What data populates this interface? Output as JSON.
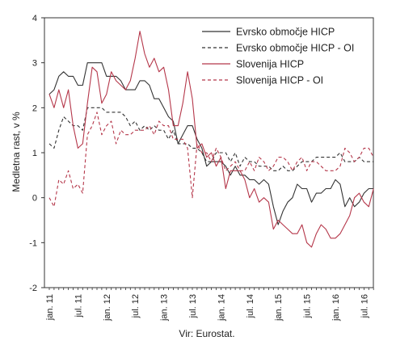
{
  "chart_data": {
    "type": "line",
    "ylabel": "Medletna rast, v %",
    "source": "Vir: Eurostat.",
    "ylim": [
      -2,
      4
    ],
    "yticks": [
      -2,
      -1,
      0,
      1,
      2,
      3,
      4
    ],
    "xticks": [
      "jan. 11",
      "jul. 11",
      "jan. 12",
      "jul. 12",
      "jan. 13",
      "jul. 13",
      "jan. 14",
      "jul. 14",
      "jan. 15",
      "jul. 15",
      "jan. 16",
      "jul. 16"
    ],
    "x_months": 69,
    "legend_position": "top-right",
    "grid": false,
    "series": [
      {
        "name": "Evrsko območje HICP",
        "color": "#333333",
        "dash": "solid",
        "values": [
          2.3,
          2.4,
          2.7,
          2.8,
          2.7,
          2.7,
          2.5,
          2.5,
          3.0,
          3.0,
          3.0,
          3.0,
          2.7,
          2.7,
          2.7,
          2.6,
          2.4,
          2.4,
          2.4,
          2.6,
          2.6,
          2.5,
          2.2,
          2.2,
          2.0,
          1.8,
          1.7,
          1.2,
          1.4,
          1.6,
          1.6,
          1.3,
          1.1,
          0.7,
          0.8,
          0.8,
          0.8,
          0.7,
          0.5,
          0.7,
          0.5,
          0.5,
          0.4,
          0.4,
          0.3,
          0.4,
          0.3,
          -0.2,
          -0.6,
          -0.3,
          -0.1,
          0.0,
          0.3,
          0.2,
          0.2,
          -0.1,
          0.1,
          0.1,
          0.2,
          0.2,
          0.4,
          0.3,
          -0.2,
          0.0,
          -0.2,
          -0.1,
          0.1,
          0.2,
          0.2
        ]
      },
      {
        "name": "Evrsko območje HICP - OI",
        "color": "#333333",
        "dash": "dashed",
        "values": [
          1.2,
          1.1,
          1.5,
          1.8,
          1.7,
          1.6,
          1.6,
          1.5,
          2.0,
          2.0,
          2.0,
          2.0,
          1.9,
          1.9,
          1.9,
          1.9,
          1.8,
          1.6,
          1.7,
          1.5,
          1.6,
          1.5,
          1.6,
          1.5,
          1.5,
          1.3,
          1.5,
          1.2,
          1.2,
          1.2,
          1.1,
          1.1,
          1.0,
          0.8,
          0.8,
          1.0,
          1.0,
          1.0,
          0.8,
          1.0,
          0.7,
          0.9,
          0.8,
          0.8,
          0.7,
          0.7,
          0.7,
          0.6,
          0.6,
          0.7,
          0.6,
          0.6,
          0.7,
          0.8,
          0.8,
          0.8,
          0.9,
          0.9,
          0.9,
          0.9,
          0.9,
          1.0,
          0.8,
          0.8,
          0.8,
          0.9,
          0.8,
          0.8,
          0.8
        ]
      },
      {
        "name": "Slovenija HICP",
        "color": "#b5374a",
        "dash": "solid",
        "values": [
          2.3,
          2.0,
          2.4,
          2.0,
          2.4,
          1.6,
          1.1,
          1.2,
          2.1,
          2.9,
          2.8,
          2.1,
          2.3,
          2.8,
          2.6,
          2.5,
          2.4,
          2.6,
          3.1,
          3.7,
          3.2,
          2.9,
          3.1,
          2.8,
          2.9,
          2.4,
          1.6,
          1.6,
          2.1,
          2.8,
          2.2,
          1.1,
          1.2,
          0.9,
          1.0,
          0.7,
          0.9,
          0.2,
          0.6,
          0.6,
          0.6,
          0.4,
          0.0,
          0.2,
          -0.1,
          0.0,
          -0.1,
          -0.7,
          -0.5,
          -0.6,
          -0.7,
          -0.8,
          -0.8,
          -0.6,
          -1.0,
          -1.1,
          -0.8,
          -0.6,
          -0.7,
          -0.9,
          -0.9,
          -0.8,
          -0.6,
          -0.4,
          0.0,
          0.1,
          -0.1,
          -0.2,
          0.2
        ]
      },
      {
        "name": "Slovenija HICP - OI",
        "color": "#b5374a",
        "dash": "dashed",
        "values": [
          0.0,
          -0.2,
          0.4,
          0.3,
          0.6,
          0.2,
          0.3,
          0.1,
          1.4,
          1.6,
          1.9,
          1.4,
          1.6,
          1.7,
          1.2,
          1.5,
          1.4,
          1.4,
          1.5,
          1.5,
          1.5,
          1.6,
          1.4,
          1.7,
          1.6,
          1.6,
          1.3,
          1.3,
          1.3,
          1.1,
          0.0,
          1.2,
          1.0,
          1.0,
          0.8,
          1.1,
          0.9,
          0.6,
          0.7,
          0.8,
          0.6,
          0.6,
          0.8,
          0.6,
          0.9,
          0.8,
          0.6,
          0.7,
          0.9,
          0.9,
          0.8,
          0.6,
          0.8,
          0.9,
          0.6,
          0.8,
          0.8,
          0.7,
          0.6,
          0.6,
          0.6,
          0.7,
          1.1,
          1.0,
          0.8,
          0.9,
          1.1,
          1.1,
          0.9
        ]
      }
    ]
  }
}
